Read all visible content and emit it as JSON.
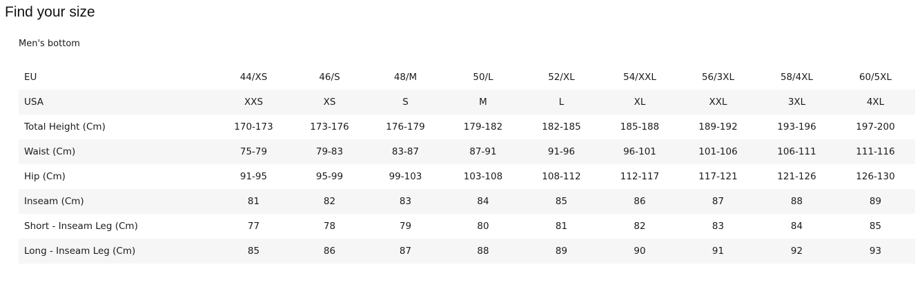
{
  "page": {
    "title": "Find your size"
  },
  "size_chart": {
    "section_title": "Men's bottom",
    "rows": [
      {
        "label": "EU",
        "values": [
          "44/XS",
          "46/S",
          "48/M",
          "50/L",
          "52/XL",
          "54/XXL",
          "56/3XL",
          "58/4XL",
          "60/5XL"
        ]
      },
      {
        "label": "USA",
        "values": [
          "XXS",
          "XS",
          "S",
          "M",
          "L",
          "XL",
          "XXL",
          "3XL",
          "4XL"
        ]
      },
      {
        "label": "Total Height (Cm)",
        "values": [
          "170-173",
          "173-176",
          "176-179",
          "179-182",
          "182-185",
          "185-188",
          "189-192",
          "193-196",
          "197-200"
        ]
      },
      {
        "label": "Waist (Cm)",
        "values": [
          "75-79",
          "79-83",
          "83-87",
          "87-91",
          "91-96",
          "96-101",
          "101-106",
          "106-111",
          "111-116"
        ]
      },
      {
        "label": "Hip (Cm)",
        "values": [
          "91-95",
          "95-99",
          "99-103",
          "103-108",
          "108-112",
          "112-117",
          "117-121",
          "121-126",
          "126-130"
        ]
      },
      {
        "label": "Inseam (Cm)",
        "values": [
          "81",
          "82",
          "83",
          "84",
          "85",
          "86",
          "87",
          "88",
          "89"
        ]
      },
      {
        "label": "Short - Inseam Leg (Cm)",
        "values": [
          "77",
          "78",
          "79",
          "80",
          "81",
          "82",
          "83",
          "84",
          "85"
        ]
      },
      {
        "label": "Long - Inseam Leg (Cm)",
        "values": [
          "85",
          "86",
          "87",
          "88",
          "89",
          "90",
          "91",
          "92",
          "93"
        ]
      }
    ]
  },
  "colors": {
    "row_shade": "#f6f6f6",
    "text": "#1a1a1a"
  }
}
